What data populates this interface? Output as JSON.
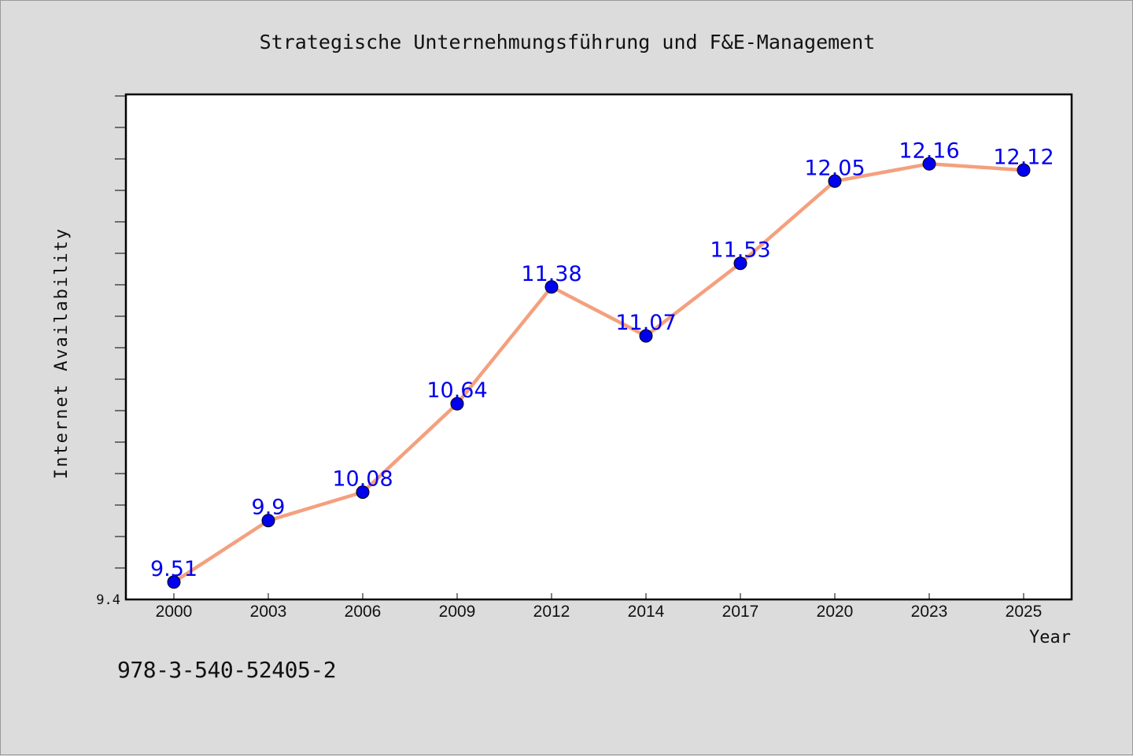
{
  "chart_data": {
    "type": "line",
    "title": "Strategische Unternehmungsführung und F&E-Management",
    "xlabel": "Year",
    "ylabel": "Internet Availability",
    "categories": [
      "2000",
      "2003",
      "2006",
      "2009",
      "2012",
      "2014",
      "2017",
      "2020",
      "2023",
      "2025"
    ],
    "series": [
      {
        "values": [
          9.51,
          9.9,
          10.08,
          10.64,
          11.38,
          11.07,
          11.53,
          12.05,
          12.16,
          12.12
        ],
        "data_labels": [
          "9.51",
          "9.9",
          "10.08",
          "10.64",
          "11.38",
          "11.07",
          "11.53",
          "12.05",
          "12.16",
          "12.12"
        ],
        "line_color": "#f4a07e",
        "marker_color": "#0000ee",
        "label_color": "#0000ee"
      }
    ],
    "ylim": [
      9.4,
      12.6
    ],
    "y_tick_labels": [
      "9.4"
    ],
    "grid": false,
    "legend": false
  },
  "footer": {
    "isbn": "978-3-540-52405-2"
  }
}
